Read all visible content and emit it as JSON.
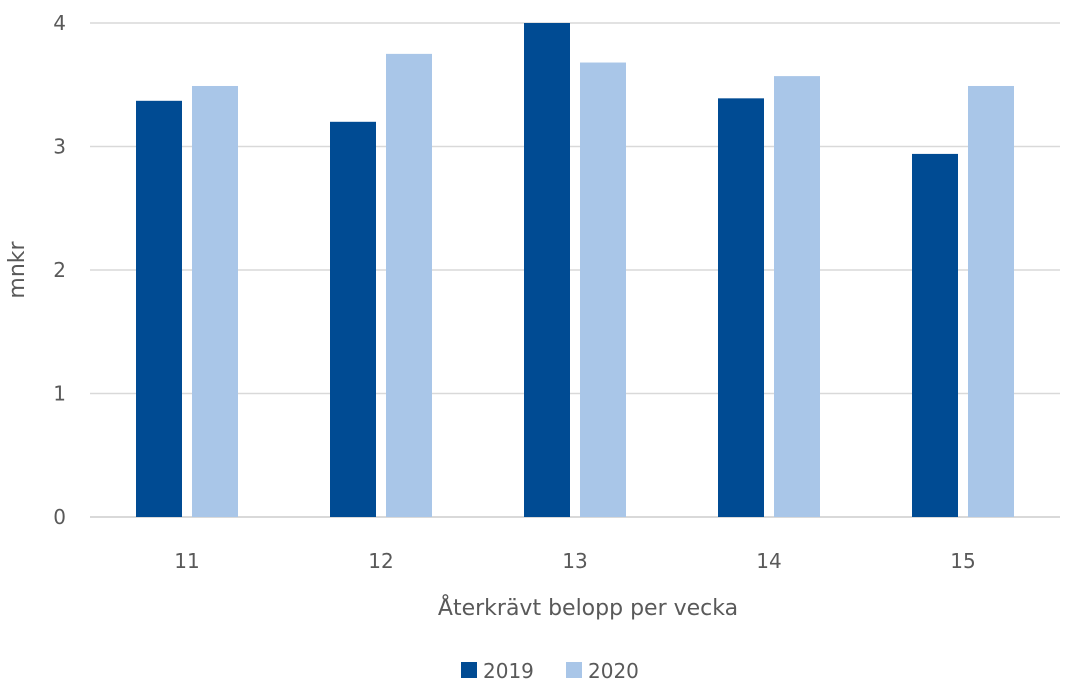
{
  "chart_data": {
    "type": "bar",
    "categories": [
      "11",
      "12",
      "13",
      "14",
      "15"
    ],
    "series": [
      {
        "name": "2019",
        "values": [
          3.37,
          3.2,
          4.0,
          3.39,
          2.94
        ],
        "color": "#004b93"
      },
      {
        "name": "2020",
        "values": [
          3.49,
          3.75,
          3.68,
          3.57,
          3.49
        ],
        "color": "#a9c6e8"
      }
    ],
    "yticks": [
      "0",
      "1",
      "2",
      "3",
      "4"
    ],
    "xlabel": "Återkrävt belopp per vecka",
    "ylabel": "mnkr",
    "ylim": [
      0,
      4
    ],
    "grid": true,
    "legend_position": "bottom",
    "colors": {
      "grid": "#d9d9d9",
      "text": "#595959"
    }
  }
}
